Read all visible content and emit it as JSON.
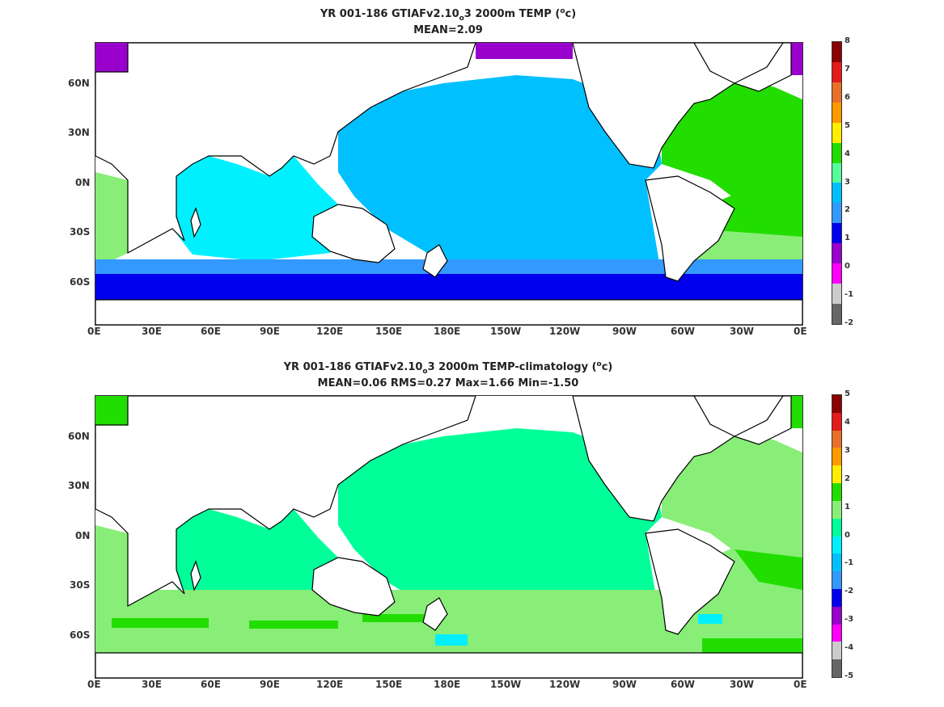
{
  "panels": [
    {
      "title_prefix": "YR 001-186 GTIAFv2.10",
      "title_sub": "o",
      "title_mid": "3 2000m TEMP (",
      "title_sup": "o",
      "title_suffix": "c)",
      "stats": "MEAN=2.09",
      "colorbar_ticks": [
        "8",
        "7",
        "6",
        "5",
        "4",
        "3",
        "2",
        "1",
        "0",
        "-1",
        "-2"
      ],
      "colorbar_colors": [
        "#8b0000",
        "#e41a1c",
        "#e8702a",
        "#ff9900",
        "#ffee00",
        "#22dd00",
        "#55ff99",
        "#00c0ff",
        "#3399ff",
        "#0000ee",
        "#9900cc",
        "#ff00ff",
        "#cccccc",
        "#666666"
      ]
    },
    {
      "title_prefix": "YR 001-186 GTIAFv2.10",
      "title_sub": "o",
      "title_mid": "3 2000m TEMP-climatology (",
      "title_sup": "o",
      "title_suffix": "c)",
      "stats": "MEAN=0.06   RMS=0.27   Max=1.66   Min=-1.50",
      "colorbar_ticks": [
        "5",
        "4",
        "3",
        "2",
        "1",
        "0",
        "-1",
        "-2",
        "-3",
        "-4",
        "-5"
      ],
      "colorbar_colors": [
        "#8b0000",
        "#e41a1c",
        "#e8702a",
        "#ff9900",
        "#ffee00",
        "#22dd00",
        "#88ee77",
        "#00ff99",
        "#00f0ff",
        "#00c0ff",
        "#3399ff",
        "#0000ee",
        "#9900cc",
        "#ff00ff",
        "#cccccc",
        "#666666"
      ]
    }
  ],
  "x_ticks": [
    "0E",
    "30E",
    "60E",
    "90E",
    "120E",
    "150E",
    "180E",
    "150W",
    "120W",
    "90W",
    "60W",
    "30W",
    "0E"
  ],
  "y_ticks": [
    "60N",
    "30N",
    "0N",
    "30S",
    "60S"
  ],
  "colors": {
    "land": "#ffffff",
    "coast": "#000000",
    "p1_pacific": "#00c0ff",
    "p1_indian": "#00f0ff",
    "p1_atlantic": "#22dd00",
    "p1_southern": "#0000ee",
    "p1_southern_mid": "#3399ff",
    "p1_arctic": "#9900cc",
    "p1_sw_atlantic": "#88ee77",
    "p2_ocean": "#00ff99",
    "p2_atlantic": "#88ee77",
    "p2_bright": "#22dd00",
    "p2_cyan": "#00f0ff"
  }
}
